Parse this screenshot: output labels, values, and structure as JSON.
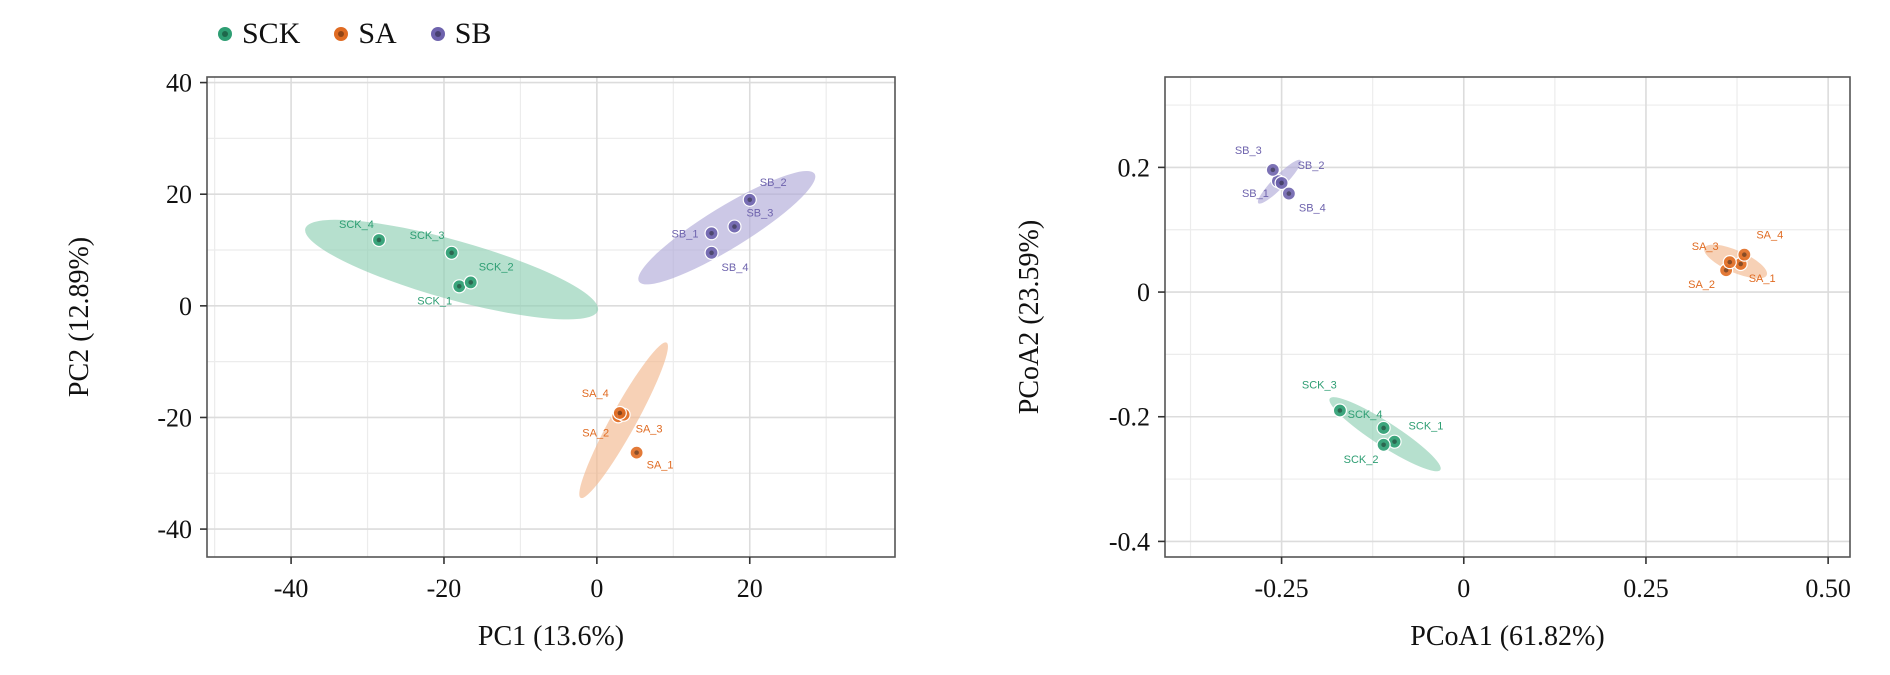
{
  "legend": [
    {
      "name": "SCK",
      "color": "#2e9e73"
    },
    {
      "name": "SA",
      "color": "#e06b22"
    },
    {
      "name": "SB",
      "color": "#6e63ad"
    }
  ],
  "colors": {
    "SCK": {
      "point": "#2e9e73",
      "fill": "#8fd0b3",
      "label": "#2e9e73"
    },
    "SA": {
      "point": "#e06b22",
      "fill": "#f2b98f",
      "label": "#e06b22"
    },
    "SB": {
      "point": "#6e63ad",
      "fill": "#b1abd8",
      "label": "#6e63ad"
    }
  },
  "chart_data": [
    {
      "type": "scatter",
      "title": "",
      "xlabel": "PC1 (13.6%)",
      "ylabel": "PC2 (12.89%)",
      "xlim": [
        -51,
        39
      ],
      "ylim": [
        -45,
        41
      ],
      "xticks": [
        -40,
        -20,
        0,
        20
      ],
      "xtick_labels": [
        "-40",
        "-20",
        "0",
        "20"
      ],
      "yticks": [
        -40,
        -20,
        0,
        20,
        40
      ],
      "ytick_labels": [
        "-40",
        "-20",
        "0",
        "20",
        "40"
      ],
      "grid": true,
      "series": [
        {
          "name": "SCK",
          "points": [
            {
              "label": "SCK_1",
              "x": -18,
              "y": 3.5
            },
            {
              "label": "SCK_2",
              "x": -16.5,
              "y": 4.2
            },
            {
              "label": "SCK_3",
              "x": -19,
              "y": 9.5
            },
            {
              "label": "SCK_4",
              "x": -28.5,
              "y": 11.8
            }
          ],
          "ellipse": {
            "cx": -19,
            "cy": 6.5,
            "rx": 20.5,
            "ry": 5.0,
            "angle": -21
          }
        },
        {
          "name": "SA",
          "points": [
            {
              "label": "SA_1",
              "x": 5.2,
              "y": -26.3
            },
            {
              "label": "SA_2",
              "x": 2.8,
              "y": -19.8
            },
            {
              "label": "SA_3",
              "x": 3.5,
              "y": -19.5
            },
            {
              "label": "SA_4",
              "x": 3.0,
              "y": -19.2
            }
          ],
          "ellipse": {
            "cx": 3.5,
            "cy": -20.5,
            "rx": 15.0,
            "ry": 1.7,
            "angle": 68
          }
        },
        {
          "name": "SB",
          "points": [
            {
              "label": "SB_1",
              "x": 15.0,
              "y": 13.0
            },
            {
              "label": "SB_2",
              "x": 20.0,
              "y": 19.0
            },
            {
              "label": "SB_3",
              "x": 18.0,
              "y": 14.2
            },
            {
              "label": "SB_4",
              "x": 15.0,
              "y": 9.5
            }
          ],
          "ellipse": {
            "cx": 17.0,
            "cy": 14.0,
            "rx": 15.0,
            "ry": 3.2,
            "angle": 40
          }
        }
      ]
    },
    {
      "type": "scatter",
      "title": "",
      "xlabel": "PCoA1 (61.82%)",
      "ylabel": "PCoA2 (23.59%)",
      "xlim": [
        -0.41,
        0.53
      ],
      "ylim": [
        -0.425,
        0.345
      ],
      "xticks": [
        -0.25,
        0,
        0.25,
        0.5
      ],
      "xtick_labels": [
        "-0.25",
        "0",
        "0.25",
        "0.50"
      ],
      "yticks": [
        -0.4,
        -0.2,
        0,
        0.2
      ],
      "ytick_labels": [
        "-0.4",
        "-0.2",
        "0",
        "0.2"
      ],
      "grid": true,
      "series": [
        {
          "name": "SCK",
          "points": [
            {
              "label": "SCK_1",
              "x": -0.095,
              "y": -0.24
            },
            {
              "label": "SCK_2",
              "x": -0.11,
              "y": -0.245
            },
            {
              "label": "SCK_3",
              "x": -0.17,
              "y": -0.19
            },
            {
              "label": "SCK_4",
              "x": -0.11,
              "y": -0.218
            }
          ],
          "ellipse": {
            "cx": -0.108,
            "cy": -0.228,
            "rx": 0.095,
            "ry": 0.018,
            "angle": -37
          }
        },
        {
          "name": "SA",
          "points": [
            {
              "label": "SA_1",
              "x": 0.38,
              "y": 0.045
            },
            {
              "label": "SA_2",
              "x": 0.36,
              "y": 0.035
            },
            {
              "label": "SA_3",
              "x": 0.365,
              "y": 0.048
            },
            {
              "label": "SA_4",
              "x": 0.385,
              "y": 0.06
            }
          ],
          "ellipse": {
            "cx": 0.373,
            "cy": 0.049,
            "rx": 0.048,
            "ry": 0.017,
            "angle": -27
          }
        },
        {
          "name": "SB",
          "points": [
            {
              "label": "SB_1",
              "x": -0.255,
              "y": 0.178
            },
            {
              "label": "SB_2",
              "x": -0.25,
              "y": 0.175
            },
            {
              "label": "SB_3",
              "x": -0.262,
              "y": 0.196
            },
            {
              "label": "SB_4",
              "x": -0.24,
              "y": 0.158
            }
          ],
          "ellipse": {
            "cx": -0.253,
            "cy": 0.177,
            "rx": 0.045,
            "ry": 0.009,
            "angle": 50
          }
        }
      ]
    }
  ]
}
